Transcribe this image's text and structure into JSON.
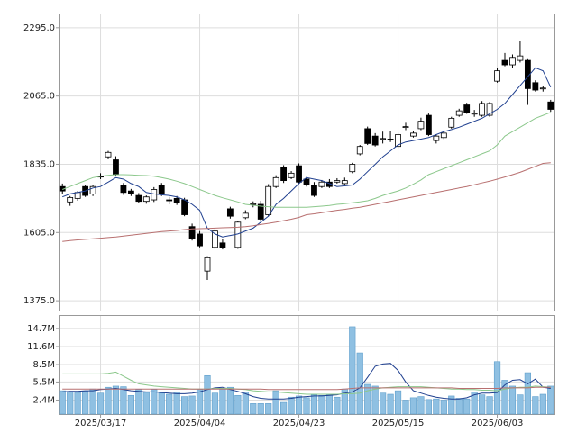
{
  "chart_data": [
    {
      "type": "candlestick",
      "categories": [
        null,
        null,
        null,
        null,
        null,
        "2025/03/17",
        null,
        null,
        null,
        null,
        null,
        null,
        null,
        null,
        null,
        null,
        null,
        null,
        "2025/04/04",
        null,
        null,
        null,
        null,
        null,
        null,
        null,
        null,
        null,
        null,
        null,
        null,
        "2025/04/23",
        null,
        null,
        null,
        null,
        null,
        null,
        null,
        null,
        null,
        null,
        null,
        null,
        "2025/05/15",
        null,
        null,
        null,
        null,
        null,
        null,
        null,
        null,
        null,
        null,
        null,
        null,
        "2025/06/03",
        null,
        null,
        null,
        null,
        null,
        null,
        null
      ],
      "open": [
        1760,
        1708,
        1720,
        1760,
        1735,
        1795,
        1860,
        1850,
        1765,
        1745,
        1730,
        1710,
        1715,
        1765,
        1715,
        1720,
        1715,
        1625,
        1600,
        1475,
        1555,
        1570,
        1685,
        1555,
        1655,
        1700,
        1700,
        1665,
        1760,
        1825,
        1790,
        1830,
        1785,
        1765,
        1760,
        1775,
        1775,
        1770,
        1810,
        1870,
        1955,
        1930,
        1920,
        1920,
        1895,
        1960,
        1930,
        1955,
        2000,
        1915,
        1925,
        1960,
        2000,
        2035,
        2005,
        2000,
        2000,
        2115,
        2185,
        2170,
        2185,
        2185,
        2110,
        2090,
        2045
      ],
      "high": [
        1770,
        1728,
        1745,
        1765,
        1765,
        1805,
        1880,
        1862,
        1772,
        1752,
        1738,
        1730,
        1758,
        1772,
        1725,
        1728,
        1722,
        1635,
        1610,
        1525,
        1620,
        1582,
        1692,
        1645,
        1680,
        1710,
        1712,
        1768,
        1798,
        1832,
        1812,
        1838,
        1792,
        1775,
        1782,
        1785,
        1788,
        1790,
        1840,
        1900,
        1962,
        1940,
        1945,
        1948,
        1942,
        1975,
        1948,
        1992,
        2006,
        1935,
        1945,
        1995,
        2022,
        2042,
        2018,
        2048,
        2045,
        2158,
        2210,
        2205,
        2250,
        2192,
        2118,
        2100,
        2052
      ],
      "low": [
        1735,
        1695,
        1712,
        1725,
        1728,
        1785,
        1852,
        1795,
        1732,
        1728,
        1705,
        1702,
        1708,
        1728,
        1700,
        1698,
        1660,
        1578,
        1555,
        1445,
        1548,
        1548,
        1652,
        1550,
        1650,
        1690,
        1645,
        1660,
        1755,
        1772,
        1785,
        1768,
        1760,
        1725,
        1755,
        1755,
        1770,
        1765,
        1805,
        1865,
        1900,
        1895,
        1905,
        1910,
        1888,
        1950,
        1925,
        1950,
        1930,
        1905,
        1920,
        1955,
        1995,
        2005,
        1995,
        1995,
        1995,
        2110,
        2165,
        2160,
        2178,
        2035,
        2080,
        2080,
        2012
      ],
      "close": [
        1745,
        1723,
        1740,
        1730,
        1760,
        1793,
        1875,
        1800,
        1740,
        1735,
        1710,
        1725,
        1750,
        1735,
        1712,
        1705,
        1665,
        1585,
        1560,
        1520,
        1610,
        1555,
        1660,
        1640,
        1670,
        1702,
        1650,
        1760,
        1790,
        1780,
        1805,
        1775,
        1765,
        1730,
        1775,
        1760,
        1780,
        1780,
        1835,
        1895,
        1905,
        1900,
        1922,
        1918,
        1935,
        1962,
        1940,
        1980,
        1935,
        1930,
        1940,
        1990,
        2015,
        2010,
        2007,
        2040,
        2040,
        2150,
        2170,
        2195,
        2200,
        2090,
        2085,
        2092,
        2020
      ],
      "body_up_color": "#ffffff",
      "body_down_color": "#000000",
      "series": [
        {
          "color": "#1f3f8f",
          "values": [
            1725,
            1735,
            1740,
            1745,
            1755,
            1760,
            1775,
            1790,
            1785,
            1770,
            1760,
            1740,
            1735,
            1732,
            1730,
            1725,
            1715,
            1700,
            1680,
            1620,
            1600,
            1590,
            1595,
            1600,
            1610,
            1620,
            1640,
            1660,
            1700,
            1720,
            1745,
            1770,
            1790,
            1785,
            1780,
            1770,
            1760,
            1762,
            1765,
            1785,
            1810,
            1835,
            1860,
            1880,
            1900,
            1910,
            1915,
            1920,
            1925,
            1935,
            1945,
            1952,
            1960,
            1970,
            1980,
            1990,
            2005,
            2020,
            2040,
            2070,
            2100,
            2130,
            2160,
            2150,
            2095
          ]
        },
        {
          "color": "#8cc88c",
          "values": [
            1750,
            1760,
            1770,
            1780,
            1790,
            1795,
            1798,
            1800,
            1800,
            1799,
            1798,
            1797,
            1795,
            1790,
            1785,
            1778,
            1770,
            1760,
            1750,
            1740,
            1730,
            1722,
            1715,
            1708,
            1700,
            1697,
            1694,
            1692,
            1690,
            1690,
            1690,
            1690,
            1690,
            1692,
            1694,
            1696,
            1700,
            1702,
            1705,
            1708,
            1712,
            1720,
            1730,
            1738,
            1745,
            1755,
            1768,
            1782,
            1800,
            1810,
            1820,
            1830,
            1840,
            1850,
            1860,
            1870,
            1880,
            1900,
            1930,
            1945,
            1960,
            1975,
            1990,
            2000,
            2010
          ]
        },
        {
          "color": "#b87070",
          "values": [
            1575,
            1578,
            1580,
            1582,
            1584,
            1586,
            1588,
            1590,
            1593,
            1596,
            1599,
            1602,
            1605,
            1608,
            1610,
            1612,
            1615,
            1617,
            1618,
            1619,
            1620,
            1621,
            1622,
            1623,
            1625,
            1628,
            1632,
            1636,
            1640,
            1645,
            1650,
            1656,
            1665,
            1668,
            1672,
            1676,
            1680,
            1683,
            1687,
            1690,
            1695,
            1700,
            1705,
            1710,
            1715,
            1720,
            1725,
            1730,
            1735,
            1740,
            1745,
            1750,
            1755,
            1760,
            1766,
            1772,
            1778,
            1785,
            1792,
            1800,
            1808,
            1818,
            1828,
            1838,
            1840
          ]
        }
      ],
      "ylim": [
        1342,
        2343
      ],
      "yticks": [
        {
          "value": 1375,
          "label": "1375.0"
        },
        {
          "value": 1605,
          "label": "1605.0"
        },
        {
          "value": 1835,
          "label": "1835.0"
        },
        {
          "value": 2065,
          "label": "2065.0"
        },
        {
          "value": 2295,
          "label": "2295.0"
        }
      ],
      "grid": true
    },
    {
      "type": "bar",
      "values": [
        4.0,
        3.9,
        3.7,
        3.9,
        4.3,
        3.6,
        4.6,
        4.8,
        4.7,
        3.2,
        4.2,
        3.7,
        4.2,
        3.6,
        3.4,
        3.8,
        3.0,
        3.1,
        4.2,
        6.6,
        3.6,
        4.4,
        4.6,
        3.2,
        3.8,
        1.8,
        1.8,
        1.8,
        4.0,
        2.0,
        2.9,
        3.1,
        2.8,
        3.3,
        3.2,
        3.3,
        2.9,
        4.3,
        15.0,
        10.5,
        5.1,
        4.8,
        3.6,
        3.4,
        4.0,
        2.4,
        2.8,
        3.0,
        2.5,
        2.6,
        2.4,
        3.1,
        2.7,
        2.6,
        3.8,
        3.3,
        3.0,
        9.0,
        5.8,
        4.8,
        3.3,
        7.1,
        3.0,
        3.4,
        4.8
      ],
      "color": "#8fc0e2",
      "series": [
        {
          "color": "#1f3f8f",
          "values": [
            3.8,
            3.9,
            3.9,
            4.0,
            4.0,
            4.2,
            4.3,
            4.4,
            4.2,
            4.0,
            3.9,
            3.8,
            3.8,
            3.7,
            3.6,
            3.5,
            3.5,
            3.6,
            3.8,
            4.2,
            4.5,
            4.6,
            4.2,
            3.9,
            3.5,
            3.0,
            2.7,
            2.6,
            2.6,
            2.6,
            2.7,
            2.9,
            3.0,
            3.1,
            3.1,
            3.2,
            3.3,
            3.6,
            3.8,
            4.5,
            6.3,
            8.2,
            8.6,
            8.7,
            7.5,
            5.5,
            4.0,
            3.6,
            3.2,
            2.9,
            2.7,
            2.6,
            2.6,
            2.8,
            3.3,
            3.6,
            3.6,
            3.7,
            5.0,
            5.8,
            5.9,
            5.2,
            6.0,
            4.6,
            4.4
          ]
        },
        {
          "color": "#8cc88c",
          "values": [
            6.9,
            6.9,
            6.9,
            6.9,
            6.9,
            6.9,
            7.0,
            7.2,
            6.5,
            5.8,
            5.2,
            5.0,
            4.8,
            4.7,
            4.6,
            4.5,
            4.4,
            4.3,
            4.3,
            4.3,
            4.4,
            4.4,
            4.4,
            4.3,
            4.2,
            4.0,
            3.9,
            3.8,
            3.8,
            3.7,
            3.6,
            3.5,
            3.4,
            3.4,
            3.4,
            3.4,
            3.4,
            3.5,
            3.5,
            3.6,
            4.0,
            4.3,
            4.5,
            4.6,
            4.7,
            4.7,
            4.7,
            4.7,
            4.6,
            4.5,
            4.4,
            4.3,
            4.3,
            4.2,
            4.2,
            4.1,
            4.1,
            4.0,
            4.3,
            4.5,
            4.6,
            4.6,
            4.8,
            4.7,
            4.6
          ]
        },
        {
          "color": "#b87070",
          "values": [
            4.3,
            4.3,
            4.3,
            4.3,
            4.3,
            4.3,
            4.3,
            4.3,
            4.3,
            4.3,
            4.3,
            4.3,
            4.3,
            4.3,
            4.3,
            4.3,
            4.3,
            4.3,
            4.3,
            4.3,
            4.3,
            4.3,
            4.3,
            4.3,
            4.3,
            4.3,
            4.3,
            4.2,
            4.2,
            4.2,
            4.2,
            4.2,
            4.2,
            4.2,
            4.2,
            4.2,
            4.2,
            4.3,
            4.4,
            4.5,
            4.5,
            4.5,
            4.5,
            4.5,
            4.5,
            4.5,
            4.5,
            4.5,
            4.5,
            4.5,
            4.5,
            4.5,
            4.4,
            4.4,
            4.4,
            4.4,
            4.4,
            4.4,
            4.5,
            4.5,
            4.5,
            4.5,
            4.6,
            4.6,
            4.6
          ]
        }
      ],
      "ylim": [
        0,
        17
      ],
      "yticks": [
        {
          "value": 2.4,
          "label": "2.4M"
        },
        {
          "value": 5.5,
          "label": "5.5M"
        },
        {
          "value": 8.5,
          "label": "8.5M"
        },
        {
          "value": 11.6,
          "label": "11.6M"
        },
        {
          "value": 14.7,
          "label": "14.7M"
        }
      ],
      "grid": true
    }
  ]
}
